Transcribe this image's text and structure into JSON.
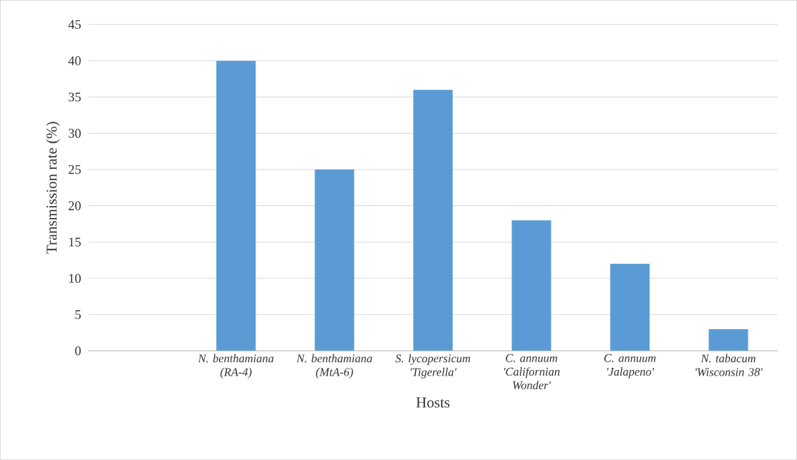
{
  "chart_data": {
    "type": "bar",
    "xlabel": "Hosts",
    "ylabel": "Transmission rate (%)",
    "categories": [
      null,
      "N. benthamiana (RA-4)",
      "N. benthamiana (MtA-6)",
      "S. lycopersicum 'Tigerella'",
      "C. annuum 'Californian Wonder'",
      "C. annuum 'Jalapeno'",
      "N. tabacum 'Wisconsin 38'"
    ],
    "values": [
      null,
      40,
      25,
      36,
      18,
      12,
      3
    ],
    "color": "#5b9bd5",
    "ylim": [
      0,
      45
    ],
    "yticks": [
      0,
      5,
      10,
      15,
      20,
      25,
      30,
      35,
      40,
      45
    ],
    "grid": "y"
  }
}
